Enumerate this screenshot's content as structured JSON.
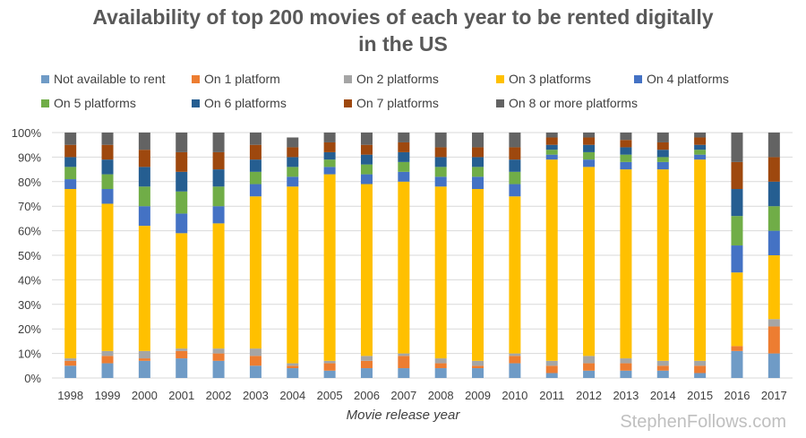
{
  "chart_data": {
    "type": "stacked-bar",
    "title": "Availability of top 200 movies of each year to be rented digitally",
    "title_line2": "in the US",
    "xlabel": "Movie release year",
    "ylabel": "",
    "ylim": [
      0,
      100
    ],
    "y_ticks": [
      "0%",
      "10%",
      "20%",
      "30%",
      "40%",
      "50%",
      "60%",
      "70%",
      "80%",
      "90%",
      "100%"
    ],
    "categories": [
      "1998",
      "1999",
      "2000",
      "2001",
      "2002",
      "2003",
      "2004",
      "2005",
      "2006",
      "2007",
      "2008",
      "2009",
      "2010",
      "2011",
      "2012",
      "2013",
      "2014",
      "2015",
      "2016",
      "2017"
    ],
    "series": [
      {
        "name": "Not available to rent",
        "color": "#6f9bc6",
        "values": [
          5,
          6,
          7,
          8,
          7,
          5,
          4,
          3,
          4,
          4,
          4,
          4,
          6,
          2,
          3,
          3,
          3,
          2,
          11,
          10
        ]
      },
      {
        "name": "On 1 platform",
        "color": "#ed7d31",
        "values": [
          2,
          3,
          1,
          3,
          3,
          4,
          1,
          3,
          3,
          5,
          2,
          1,
          3,
          3,
          3,
          3,
          2,
          3,
          2,
          11
        ]
      },
      {
        "name": "On 2 platforms",
        "color": "#a5a5a5",
        "values": [
          1,
          2,
          3,
          1,
          2,
          3,
          1,
          1,
          2,
          1,
          2,
          2,
          1,
          2,
          3,
          2,
          2,
          2,
          0,
          3
        ]
      },
      {
        "name": "On 3 platforms",
        "color": "#ffc000",
        "values": [
          69,
          60,
          51,
          47,
          51,
          62,
          72,
          76,
          70,
          70,
          70,
          70,
          64,
          82,
          77,
          77,
          78,
          82,
          30,
          26
        ]
      },
      {
        "name": "On 4 platforms",
        "color": "#4472c4",
        "values": [
          4,
          6,
          8,
          8,
          7,
          5,
          4,
          3,
          4,
          4,
          4,
          5,
          5,
          2,
          3,
          3,
          3,
          2,
          11,
          10
        ]
      },
      {
        "name": "On 5 platforms",
        "color": "#70ad47",
        "values": [
          5,
          6,
          8,
          9,
          8,
          5,
          4,
          3,
          4,
          4,
          4,
          4,
          5,
          2,
          3,
          3,
          2,
          2,
          12,
          10
        ]
      },
      {
        "name": "On 6 platforms",
        "color": "#255e91",
        "values": [
          4,
          6,
          8,
          8,
          7,
          5,
          4,
          3,
          4,
          4,
          4,
          4,
          5,
          2,
          3,
          3,
          3,
          2,
          11,
          10
        ]
      },
      {
        "name": "On 7 platforms",
        "color": "#9e480e",
        "values": [
          5,
          6,
          7,
          8,
          7,
          6,
          4,
          4,
          4,
          4,
          4,
          4,
          5,
          3,
          3,
          3,
          3,
          3,
          11,
          10
        ]
      },
      {
        "name": "On 8 or more platforms",
        "color": "#636363",
        "values": [
          5,
          5,
          7,
          8,
          8,
          5,
          4,
          4,
          5,
          4,
          6,
          6,
          6,
          2,
          2,
          3,
          4,
          2,
          12,
          10
        ]
      }
    ],
    "grid": true,
    "legend_position": "top"
  },
  "watermark": "StephenFollows.com"
}
